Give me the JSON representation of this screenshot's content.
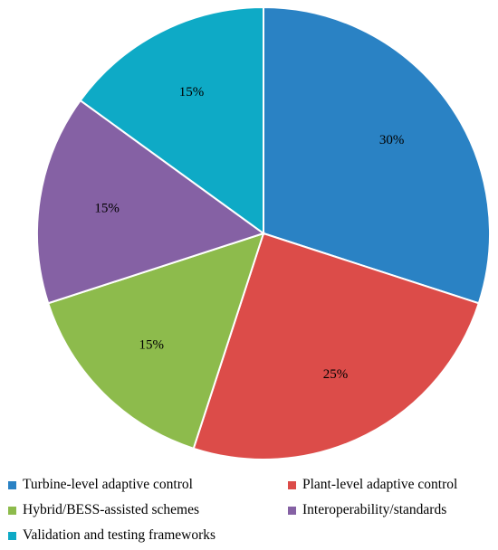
{
  "chart_data": {
    "type": "pie",
    "title": "",
    "categories": [
      "Turbine-level adaptive control",
      "Plant-level adaptive control",
      "Hybrid/BESS-assisted schemes",
      "Interoperability/standards",
      "Validation and testing frameworks"
    ],
    "values": [
      30,
      25,
      15,
      15,
      15
    ],
    "data_labels": [
      "30%",
      "25%",
      "15%",
      "15%",
      "15%"
    ],
    "colors": [
      "#2a82c4",
      "#dc4c49",
      "#8dbb4c",
      "#8561a4",
      "#0eaac6"
    ],
    "start_angle": "12 o'clock",
    "direction": "clockwise",
    "legend_position": "bottom"
  }
}
